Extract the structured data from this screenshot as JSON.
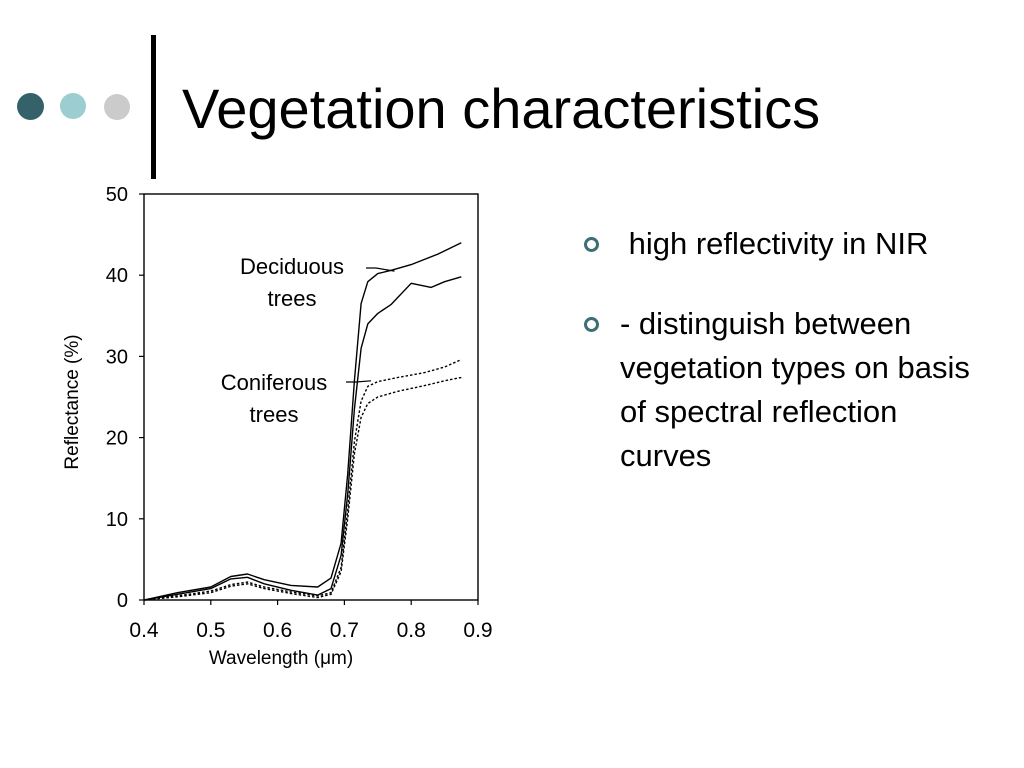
{
  "colors": {
    "dot_1": "#35626a",
    "dot_2": "#9ccdd1",
    "dot_3": "#cbcbcb",
    "bullet_marker": "#3d6e73",
    "ink": "#000000"
  },
  "slide": {
    "title": "Vegetation characteristics"
  },
  "bullets": [
    {
      "text": " high reflectivity in NIR"
    },
    {
      "text": "- distinguish between vegetation types on basis of spectral reflection curves"
    }
  ],
  "chart_data": {
    "type": "line",
    "title": "",
    "xlabel": "Wavelength (μm)",
    "ylabel": "Reflectance (%)",
    "xlim": [
      0.4,
      0.9
    ],
    "ylim": [
      0,
      50
    ],
    "xticks": [
      "0.4",
      "0.5",
      "0.6",
      "0.7",
      "0.8",
      "0.9"
    ],
    "yticks": [
      "0",
      "10",
      "20",
      "30",
      "40",
      "50"
    ],
    "grid": false,
    "annotations": [
      {
        "lines": [
          "Deciduous",
          "trees"
        ],
        "points_to": [
          0.775,
          40.5
        ]
      },
      {
        "lines": [
          "Coniferous",
          "trees"
        ],
        "points_to": [
          0.74,
          27.0
        ]
      }
    ],
    "series": [
      {
        "style": "solid",
        "group": "Deciduous trees",
        "x": [
          0.4,
          0.45,
          0.5,
          0.53,
          0.555,
          0.58,
          0.62,
          0.66,
          0.68,
          0.695,
          0.705,
          0.715,
          0.725,
          0.735,
          0.75,
          0.77,
          0.8,
          0.84,
          0.875
        ],
        "y": [
          0,
          0.9,
          1.6,
          2.9,
          3.2,
          2.5,
          1.8,
          1.6,
          2.7,
          7.0,
          15.5,
          27.0,
          36.5,
          39.2,
          40.2,
          40.6,
          41.3,
          42.6,
          44.0
        ]
      },
      {
        "style": "solid",
        "group": "Deciduous trees",
        "x": [
          0.4,
          0.45,
          0.5,
          0.53,
          0.555,
          0.58,
          0.62,
          0.66,
          0.68,
          0.695,
          0.705,
          0.715,
          0.725,
          0.735,
          0.75,
          0.77,
          0.8,
          0.83,
          0.85,
          0.875
        ],
        "y": [
          0,
          0.7,
          1.4,
          2.6,
          2.8,
          2.0,
          1.2,
          0.6,
          1.4,
          5.5,
          13.0,
          23.5,
          31.0,
          34.0,
          35.3,
          36.4,
          39.0,
          38.5,
          39.2,
          39.8
        ]
      },
      {
        "style": "dotted",
        "group": "Coniferous trees",
        "x": [
          0.4,
          0.45,
          0.5,
          0.53,
          0.555,
          0.58,
          0.62,
          0.66,
          0.68,
          0.695,
          0.705,
          0.715,
          0.725,
          0.735,
          0.75,
          0.78,
          0.82,
          0.85,
          0.875
        ],
        "y": [
          0,
          0.5,
          1.1,
          1.9,
          2.2,
          1.6,
          1.0,
          0.5,
          0.9,
          4.0,
          11.0,
          19.5,
          24.5,
          26.3,
          26.9,
          27.4,
          28.0,
          28.7,
          29.6
        ]
      },
      {
        "style": "dotted",
        "group": "Coniferous trees",
        "x": [
          0.4,
          0.45,
          0.5,
          0.53,
          0.555,
          0.58,
          0.62,
          0.66,
          0.68,
          0.695,
          0.705,
          0.715,
          0.725,
          0.735,
          0.75,
          0.78,
          0.82,
          0.85,
          0.875
        ],
        "y": [
          0,
          0.4,
          0.9,
          1.7,
          2.0,
          1.4,
          0.8,
          0.3,
          0.7,
          3.5,
          10.0,
          18.0,
          22.5,
          24.2,
          25.0,
          25.7,
          26.4,
          27.0,
          27.4
        ]
      }
    ]
  }
}
